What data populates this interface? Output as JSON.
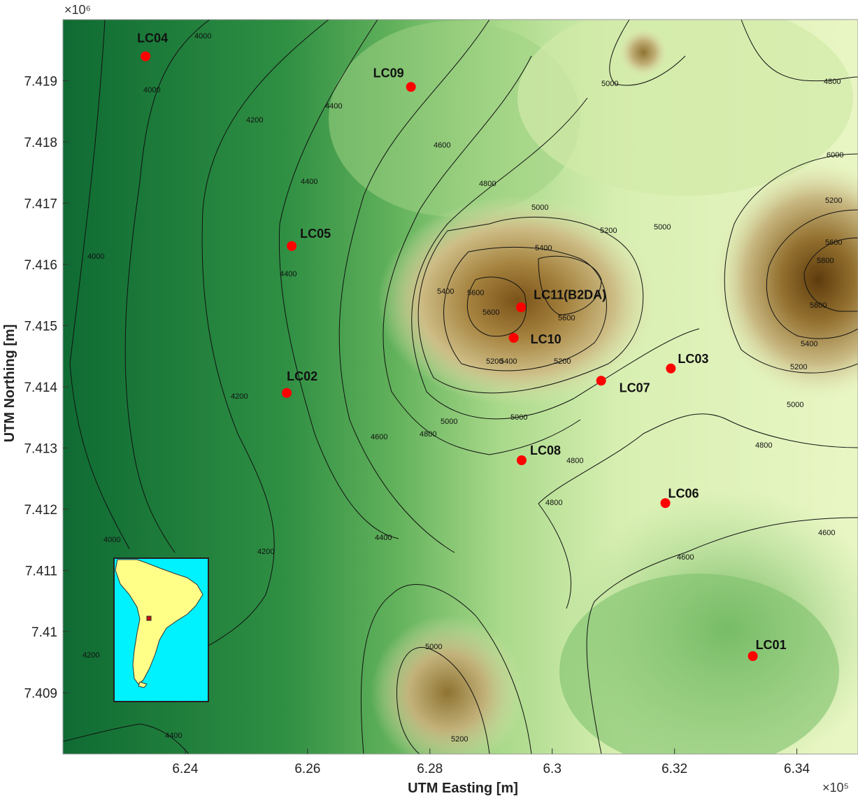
{
  "map": {
    "x_multiplier": "×10⁵",
    "y_multiplier": "×10⁶",
    "x_axis_label": "UTM Easting [m]",
    "y_axis_label": "UTM Northing [m]",
    "x_extent": [
      6.22,
      6.35
    ],
    "y_extent": [
      7.408,
      7.42
    ],
    "x_ticks": [
      {
        "value": 6.24,
        "label": "6.24"
      },
      {
        "value": 6.26,
        "label": "6.26"
      },
      {
        "value": 6.28,
        "label": "6.28"
      },
      {
        "value": 6.3,
        "label": "6.3"
      },
      {
        "value": 6.32,
        "label": "6.32"
      },
      {
        "value": 6.34,
        "label": "6.34"
      }
    ],
    "y_ticks": [
      {
        "value": 7.409,
        "label": "7.409"
      },
      {
        "value": 7.41,
        "label": "7.41"
      },
      {
        "value": 7.411,
        "label": "7.411"
      },
      {
        "value": 7.412,
        "label": "7.412"
      },
      {
        "value": 7.413,
        "label": "7.413"
      },
      {
        "value": 7.414,
        "label": "7.414"
      },
      {
        "value": 7.415,
        "label": "7.415"
      },
      {
        "value": 7.416,
        "label": "7.416"
      },
      {
        "value": 7.417,
        "label": "7.417"
      },
      {
        "value": 7.418,
        "label": "7.418"
      },
      {
        "value": 7.419,
        "label": "7.419"
      }
    ],
    "colors": {
      "low": "#0f6b33",
      "mid": "#7cc06c",
      "high": "#e6f4be",
      "peak": "#6e4a14",
      "point": "#ff0000",
      "contour": "#111111"
    },
    "sites": [
      {
        "id": "LC01",
        "x": 6.3328,
        "y": 7.4096
      },
      {
        "id": "LC02",
        "x": 6.2566,
        "y": 7.4139
      },
      {
        "id": "LC03",
        "x": 6.3194,
        "y": 7.4143
      },
      {
        "id": "LC04",
        "x": 6.2335,
        "y": 7.4194
      },
      {
        "id": "LC05",
        "x": 6.2574,
        "y": 7.4163
      },
      {
        "id": "LC06",
        "x": 6.3185,
        "y": 7.4121
      },
      {
        "id": "LC07",
        "x": 6.308,
        "y": 7.4141
      },
      {
        "id": "LC08",
        "x": 6.295,
        "y": 7.4128
      },
      {
        "id": "LC09",
        "x": 6.2769,
        "y": 7.4189
      },
      {
        "id": "LC10",
        "x": 6.2937,
        "y": 7.4148
      },
      {
        "id": "LC11(B2DA)",
        "x": 6.2949,
        "y": 7.4153
      }
    ],
    "contour_labels": [
      "4000",
      "4200",
      "4400",
      "4600",
      "4800",
      "5000",
      "5200",
      "5400",
      "5600",
      "5800",
      "6000"
    ],
    "inset": {
      "region": "South America",
      "marker": "study-area"
    }
  }
}
